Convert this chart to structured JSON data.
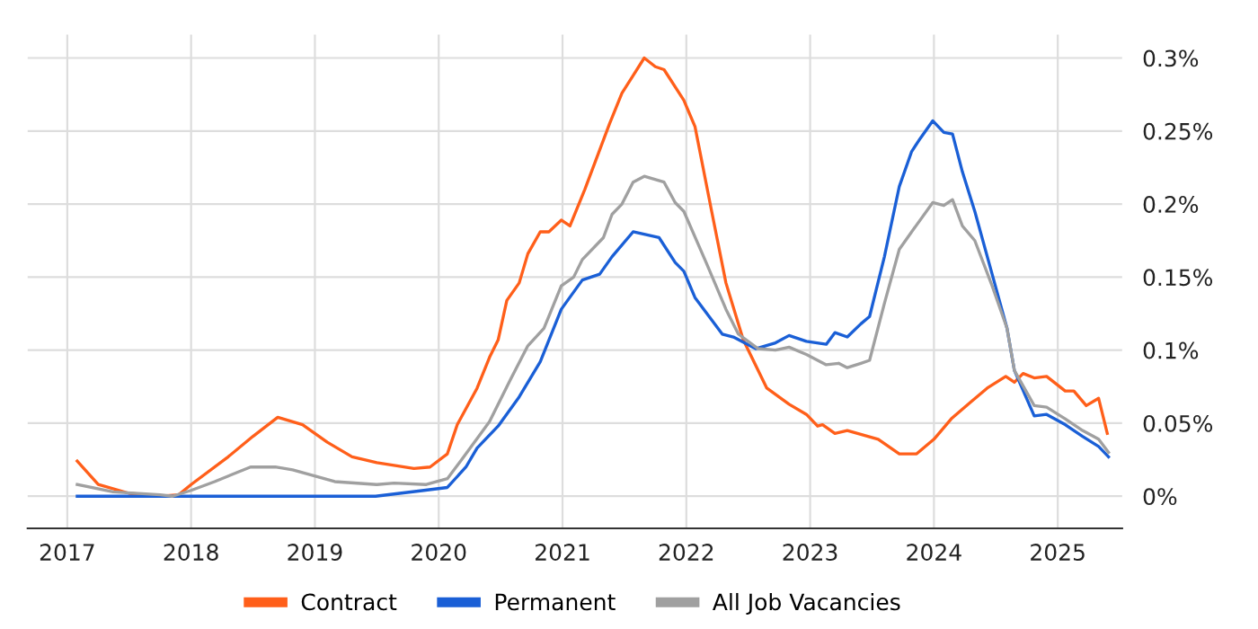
{
  "chart_data": {
    "type": "line",
    "xlim": [
      2016.68,
      2025.52
    ],
    "xticks": [
      2017,
      2018,
      2019,
      2020,
      2021,
      2022,
      2023,
      2024,
      2025
    ],
    "ylim": [
      -0.022,
      0.316
    ],
    "yticks": [
      {
        "value": 0,
        "label": "0%"
      },
      {
        "value": 0.05,
        "label": "0.05%"
      },
      {
        "value": 0.1,
        "label": "0.1%"
      },
      {
        "value": 0.15,
        "label": "0.15%"
      },
      {
        "value": 0.2,
        "label": "0.2%"
      },
      {
        "value": 0.25,
        "label": "0.25%"
      },
      {
        "value": 0.3,
        "label": "0.3%"
      }
    ],
    "grid": true,
    "legend": "bottom",
    "marker": "none",
    "line_style": "solid",
    "series": [
      {
        "name": "Contract",
        "color": "#ff5f1a",
        "x": [
          2017.08,
          2017.25,
          2017.5,
          2017.75,
          2017.9,
          2018.0,
          2018.3,
          2018.5,
          2018.7,
          2018.9,
          2019.1,
          2019.3,
          2019.5,
          2019.8,
          2019.93,
          2020.07,
          2020.15,
          2020.31,
          2020.41,
          2020.48,
          2020.55,
          2020.65,
          2020.72,
          2020.82,
          2020.89,
          2020.99,
          2021.06,
          2021.18,
          2021.38,
          2021.48,
          2021.57,
          2021.66,
          2021.75,
          2021.82,
          2021.98,
          2022.07,
          2022.2,
          2022.32,
          2022.46,
          2022.65,
          2022.83,
          2022.97,
          2023.06,
          2023.1,
          2023.2,
          2023.3,
          2023.55,
          2023.72,
          2023.86,
          2024.0,
          2024.14,
          2024.29,
          2024.43,
          2024.58,
          2024.65,
          2024.72,
          2024.81,
          2024.91,
          2025.06,
          2025.13,
          2025.23,
          2025.33,
          2025.4
        ],
        "values": [
          0.024,
          0.008,
          0.002,
          0.0,
          0.001,
          0.008,
          0.027,
          0.041,
          0.054,
          0.049,
          0.037,
          0.027,
          0.023,
          0.019,
          0.02,
          0.029,
          0.049,
          0.074,
          0.095,
          0.107,
          0.134,
          0.146,
          0.166,
          0.181,
          0.181,
          0.189,
          0.185,
          0.21,
          0.255,
          0.276,
          0.288,
          0.3,
          0.294,
          0.292,
          0.271,
          0.253,
          0.197,
          0.146,
          0.107,
          0.074,
          0.063,
          0.056,
          0.048,
          0.049,
          0.043,
          0.045,
          0.039,
          0.029,
          0.029,
          0.039,
          0.053,
          0.064,
          0.074,
          0.082,
          0.078,
          0.084,
          0.081,
          0.082,
          0.072,
          0.072,
          0.062,
          0.067,
          0.043
        ]
      },
      {
        "name": "Permanent",
        "color": "#1a5fd6",
        "x": [
          2017.08,
          2018.0,
          2019.0,
          2019.49,
          2019.88,
          2020.07,
          2020.22,
          2020.31,
          2020.48,
          2020.65,
          2020.82,
          2020.99,
          2021.16,
          2021.3,
          2021.4,
          2021.57,
          2021.78,
          2021.91,
          2021.98,
          2022.07,
          2022.29,
          2022.38,
          2022.56,
          2022.72,
          2022.83,
          2022.97,
          2023.13,
          2023.2,
          2023.3,
          2023.41,
          2023.48,
          2023.6,
          2023.72,
          2023.82,
          2023.89,
          2023.99,
          2024.08,
          2024.15,
          2024.23,
          2024.33,
          2024.47,
          2024.59,
          2024.65,
          2024.81,
          2024.91,
          2025.06,
          2025.2,
          2025.33,
          2025.41
        ],
        "values": [
          0.0,
          0.0,
          0.0,
          0.0,
          0.004,
          0.006,
          0.02,
          0.033,
          0.048,
          0.068,
          0.092,
          0.128,
          0.148,
          0.152,
          0.164,
          0.181,
          0.177,
          0.16,
          0.154,
          0.136,
          0.111,
          0.109,
          0.101,
          0.105,
          0.11,
          0.106,
          0.104,
          0.112,
          0.109,
          0.118,
          0.123,
          0.164,
          0.212,
          0.236,
          0.245,
          0.257,
          0.249,
          0.248,
          0.222,
          0.195,
          0.152,
          0.115,
          0.086,
          0.055,
          0.056,
          0.049,
          0.041,
          0.034,
          0.027
        ]
      },
      {
        "name": "All Job Vacancies",
        "color": "#a0a0a0",
        "x": [
          2017.08,
          2017.37,
          2017.75,
          2017.85,
          2018.0,
          2018.19,
          2018.48,
          2018.68,
          2018.82,
          2019.16,
          2019.5,
          2019.64,
          2019.9,
          2020.07,
          2020.22,
          2020.41,
          2020.58,
          2020.72,
          2020.85,
          2020.99,
          2021.09,
          2021.16,
          2021.33,
          2021.4,
          2021.48,
          2021.57,
          2021.66,
          2021.82,
          2021.91,
          2021.98,
          2022.16,
          2022.32,
          2022.42,
          2022.58,
          2022.72,
          2022.83,
          2022.97,
          2023.13,
          2023.23,
          2023.3,
          2023.41,
          2023.48,
          2023.6,
          2023.72,
          2023.82,
          2023.99,
          2024.08,
          2024.15,
          2024.23,
          2024.33,
          2024.47,
          2024.59,
          2024.65,
          2024.81,
          2024.91,
          2025.06,
          2025.2,
          2025.33,
          2025.41
        ],
        "values": [
          0.008,
          0.003,
          0.001,
          0.0,
          0.004,
          0.01,
          0.02,
          0.02,
          0.018,
          0.01,
          0.008,
          0.009,
          0.008,
          0.012,
          0.029,
          0.051,
          0.08,
          0.103,
          0.115,
          0.144,
          0.15,
          0.162,
          0.177,
          0.193,
          0.2,
          0.215,
          0.219,
          0.215,
          0.201,
          0.195,
          0.16,
          0.128,
          0.111,
          0.101,
          0.1,
          0.102,
          0.097,
          0.09,
          0.091,
          0.088,
          0.091,
          0.093,
          0.132,
          0.169,
          0.181,
          0.201,
          0.199,
          0.203,
          0.185,
          0.175,
          0.144,
          0.115,
          0.086,
          0.062,
          0.061,
          0.053,
          0.045,
          0.039,
          0.03
        ]
      }
    ]
  }
}
